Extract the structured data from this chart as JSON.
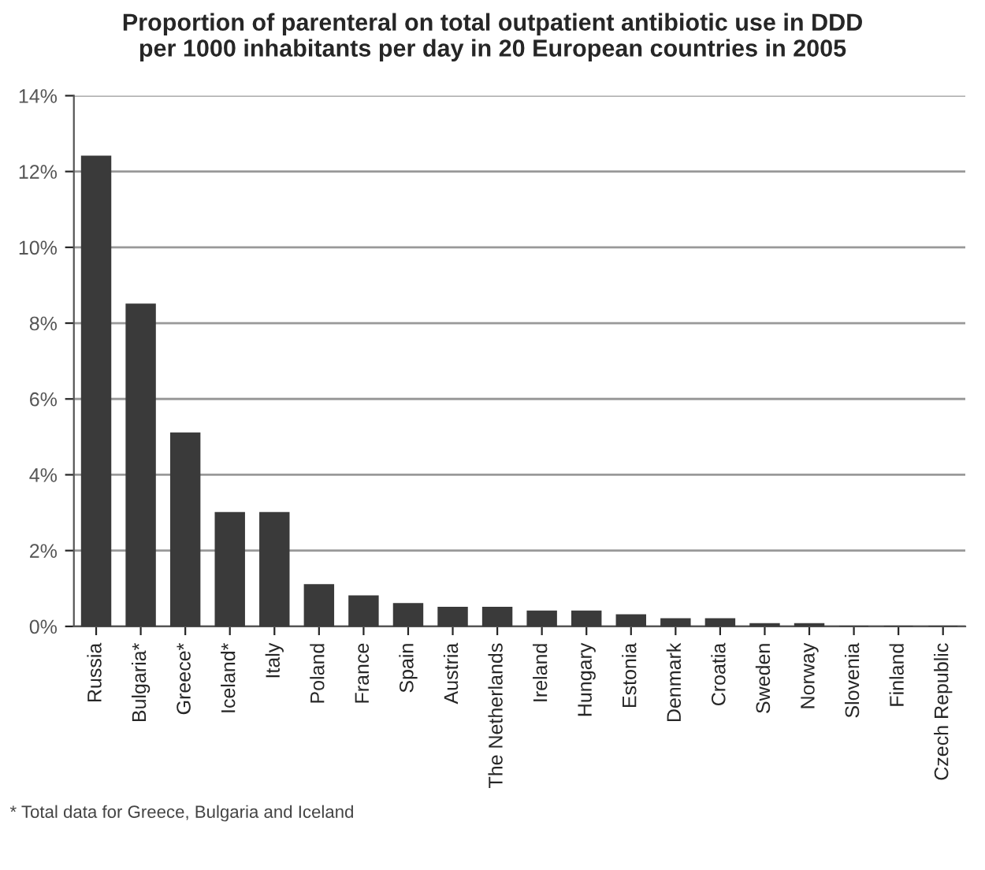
{
  "chart_data": {
    "type": "bar",
    "title": "Proportion of parenteral on total outpatient antibiotic use in DDD\nper 1000 inhabitants per day in 20 European countries in 2005",
    "categories": [
      "Russia",
      "Bulgaria*",
      "Greece*",
      "Iceland*",
      "Italy",
      "Poland",
      "France",
      "Spain",
      "Austria",
      "The Netherlands",
      "Ireland",
      "Hungary",
      "Estonia",
      "Denmark",
      "Croatia",
      "Sweden",
      "Norway",
      "Slovenia",
      "Finland",
      "Czech Republic"
    ],
    "values": [
      12.4,
      8.5,
      5.1,
      3.0,
      3.0,
      1.1,
      0.8,
      0.6,
      0.5,
      0.5,
      0.4,
      0.4,
      0.3,
      0.2,
      0.2,
      0.07,
      0.07,
      0,
      0,
      0
    ],
    "color": "#3a3a3a",
    "ylim": [
      0,
      14
    ],
    "yticks": [
      {
        "value": 0,
        "label": "0%"
      },
      {
        "value": 2,
        "label": "2%"
      },
      {
        "value": 4,
        "label": "4%"
      },
      {
        "value": 6,
        "label": "6%"
      },
      {
        "value": 8,
        "label": "8%"
      },
      {
        "value": 10,
        "label": "10%"
      },
      {
        "value": 12,
        "label": "12%"
      },
      {
        "value": 14,
        "label": "14%"
      }
    ],
    "grid": "y",
    "annotations": [
      "* Total data for Greece, Bulgaria and Iceland"
    ]
  }
}
